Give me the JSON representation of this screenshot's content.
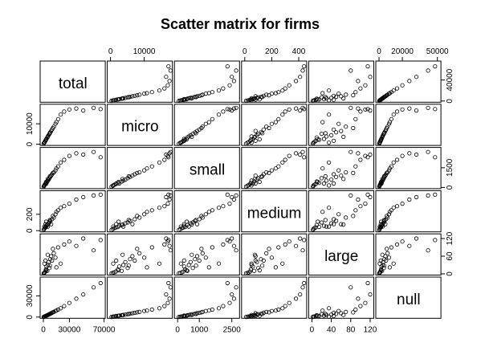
{
  "chart_data": {
    "type": "scatter",
    "title": "Scatter matrix for firms",
    "variables": [
      "total",
      "micro",
      "small",
      "medium",
      "large",
      "null"
    ],
    "ranges": {
      "total": [
        0,
        70000
      ],
      "micro": [
        0,
        18000
      ],
      "small": [
        0,
        2800
      ],
      "medium": [
        0,
        450
      ],
      "large": [
        0,
        125
      ],
      "null": [
        0,
        52000
      ]
    },
    "ticks": {
      "total": [
        "0",
        "30000",
        "70000"
      ],
      "micro": [
        "0",
        "10000"
      ],
      "small": [
        "0",
        "1000",
        "2500",
        "1500"
      ],
      "medium": [
        "0",
        "200",
        "400"
      ],
      "large": [
        "0",
        "40",
        "80",
        "120",
        "60"
      ],
      "null": [
        "0",
        "20000",
        "50000",
        "30000",
        "40000"
      ]
    },
    "records": [
      {
        "total": 400,
        "micro": 300,
        "small": 60,
        "medium": 10,
        "large": 2,
        "null": 200
      },
      {
        "total": 900,
        "micro": 700,
        "small": 120,
        "medium": 20,
        "large": 3,
        "null": 500
      },
      {
        "total": 1500,
        "micro": 1100,
        "small": 200,
        "medium": 30,
        "large": 5,
        "null": 800
      },
      {
        "total": 2200,
        "micro": 1600,
        "small": 260,
        "medium": 40,
        "large": 8,
        "null": 1200
      },
      {
        "total": 3000,
        "micro": 2200,
        "small": 350,
        "medium": 45,
        "large": 15,
        "null": 1700
      },
      {
        "total": 3600,
        "micro": 2600,
        "small": 300,
        "medium": 60,
        "large": 25,
        "null": 2100
      },
      {
        "total": 4500,
        "micro": 3300,
        "small": 450,
        "medium": 70,
        "large": 10,
        "null": 2600
      },
      {
        "total": 5200,
        "micro": 3800,
        "small": 520,
        "medium": 50,
        "large": 30,
        "null": 3000
      },
      {
        "total": 6000,
        "micro": 4400,
        "small": 600,
        "medium": 90,
        "large": 40,
        "null": 3500
      },
      {
        "total": 7000,
        "micro": 5100,
        "small": 700,
        "medium": 100,
        "large": 20,
        "null": 4100
      },
      {
        "total": 8000,
        "micro": 5800,
        "small": 800,
        "medium": 120,
        "large": 50,
        "null": 4700
      },
      {
        "total": 9000,
        "micro": 6500,
        "small": 900,
        "medium": 80,
        "large": 60,
        "null": 5400
      },
      {
        "total": 10000,
        "micro": 7200,
        "small": 1000,
        "medium": 140,
        "large": 45,
        "null": 6000
      },
      {
        "total": 12000,
        "micro": 8600,
        "small": 1150,
        "medium": 160,
        "large": 70,
        "null": 7300
      },
      {
        "total": 14000,
        "micro": 10000,
        "small": 1300,
        "medium": 200,
        "large": 55,
        "null": 8600
      },
      {
        "total": 17000,
        "micro": 12300,
        "small": 1600,
        "medium": 250,
        "large": 90,
        "null": 10600
      },
      {
        "total": 20000,
        "micro": 14500,
        "small": 1900,
        "medium": 280,
        "large": 35,
        "null": 12500
      },
      {
        "total": 24000,
        "micro": 16000,
        "small": 2100,
        "medium": 300,
        "large": 100,
        "null": 15500
      },
      {
        "total": 30000,
        "micro": 17000,
        "small": 2400,
        "medium": 330,
        "large": 110,
        "null": 20000
      },
      {
        "total": 38000,
        "micro": 17500,
        "small": 2600,
        "medium": 380,
        "large": 95,
        "null": 26000
      },
      {
        "total": 46000,
        "micro": 16500,
        "small": 2500,
        "medium": 410,
        "large": 120,
        "null": 32000
      },
      {
        "total": 58000,
        "micro": 17800,
        "small": 2700,
        "medium": 430,
        "large": 80,
        "null": 42000
      },
      {
        "total": 66000,
        "micro": 17200,
        "small": 2300,
        "medium": 440,
        "large": 115,
        "null": 48000
      },
      {
        "total": 1200,
        "micro": 800,
        "small": 150,
        "medium": 50,
        "large": 35,
        "null": 700
      },
      {
        "total": 2500,
        "micro": 1700,
        "small": 300,
        "medium": 80,
        "large": 45,
        "null": 1500
      },
      {
        "total": 3200,
        "micro": 2400,
        "small": 420,
        "medium": 110,
        "large": 12,
        "null": 1800
      },
      {
        "total": 5000,
        "micro": 3600,
        "small": 650,
        "medium": 75,
        "large": 65,
        "null": 2900
      },
      {
        "total": 7500,
        "micro": 5400,
        "small": 850,
        "medium": 130,
        "large": 28,
        "null": 4400
      },
      {
        "total": 11000,
        "micro": 7900,
        "small": 1100,
        "medium": 180,
        "large": 85,
        "null": 6700
      },
      {
        "total": 15000,
        "micro": 10800,
        "small": 1450,
        "medium": 230,
        "large": 22,
        "null": 9200
      }
    ]
  }
}
